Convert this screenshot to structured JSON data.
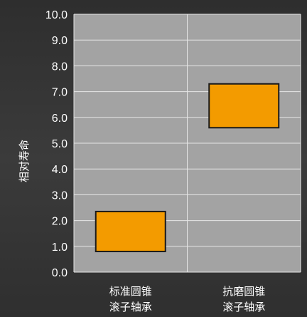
{
  "chart_data": {
    "type": "bar",
    "title": "",
    "ylabel": "相对寿命",
    "xlabel": "",
    "ylim": [
      0,
      10
    ],
    "yticks": [
      "0.0",
      "1.0",
      "2.0",
      "3.0",
      "4.0",
      "5.0",
      "6.0",
      "7.0",
      "8.0",
      "9.0",
      "10.0"
    ],
    "grid": true,
    "categories": [
      [
        "标准圆锥",
        "滚子轴承"
      ],
      [
        "抗磨圆锥",
        "滚子轴承"
      ]
    ],
    "ranges": [
      {
        "low": 0.8,
        "high": 2.35
      },
      {
        "low": 5.6,
        "high": 7.3
      }
    ],
    "colors": {
      "plot_bg": "#a3a3a3",
      "grid": "#e6e6e6",
      "bar_fill": "#f39b00",
      "bar_stroke": "#1a1a1a"
    }
  }
}
